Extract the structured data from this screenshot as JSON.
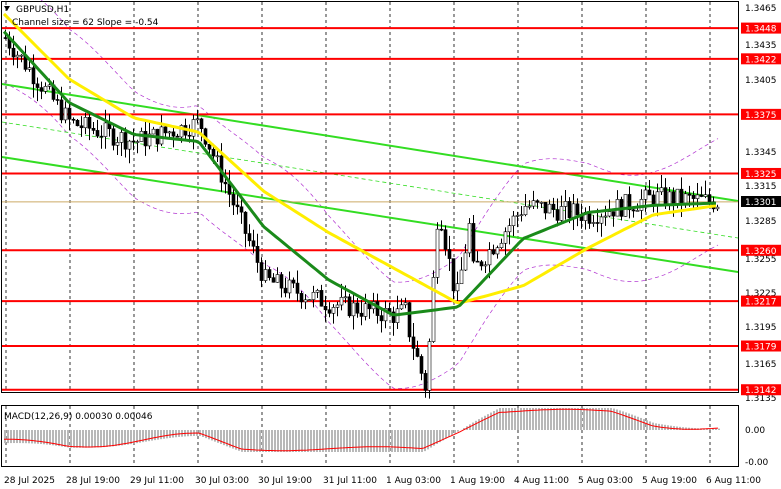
{
  "header": {
    "symbol": "GBPUSD,H1",
    "channel_info": "Channel size = 62 Slope = -0.54"
  },
  "macd": {
    "title": "MACD(12,26,9) 0.00030 0.00046",
    "scale_labels": [
      "0.00",
      "-0.00"
    ]
  },
  "price_axis": {
    "ticks": [
      "1.3465",
      "1.3435",
      "1.3405",
      "1.3345",
      "1.3315",
      "1.3285",
      "1.3255",
      "1.3225",
      "1.3195",
      "1.3165",
      "1.3135"
    ],
    "current_price": "1.3301"
  },
  "time_axis": {
    "labels": [
      "28 Jul 2025",
      "28 Jul 19:00",
      "29 Jul 11:00",
      "30 Jul 03:00",
      "30 Jul 19:00",
      "31 Jul 11:00",
      "1 Aug 03:00",
      "1 Aug 19:00",
      "4 Aug 11:00",
      "5 Aug 03:00",
      "5 Aug 19:00",
      "6 Aug 11:00"
    ]
  },
  "levels": [
    {
      "label": "1.3448",
      "value": 1.3448
    },
    {
      "label": "1.3422",
      "value": 1.3422
    },
    {
      "label": "1.3375",
      "value": 1.3375
    },
    {
      "label": "1.3325",
      "value": 1.3325
    },
    {
      "label": "1.3260",
      "value": 1.326
    },
    {
      "label": "1.3217",
      "value": 1.3217
    },
    {
      "label": "1.3179",
      "value": 1.3179
    },
    {
      "label": "1.3142",
      "value": 1.3142
    }
  ],
  "colors": {
    "level": "#ff0000",
    "channel": "#33dd22",
    "ma_fast": "#1a8a1a",
    "ma_slow": "#ffee00",
    "bollinger": "#b030d0",
    "macd_hist": "#b8b8b8",
    "macd_signal": "#ff0000",
    "candle": "#000000",
    "current_price_line": "#ccaa66"
  },
  "chart_data": {
    "type": "candlestick",
    "symbol": "GBPUSD",
    "timeframe": "H1",
    "ylim": [
      1.3135,
      1.3465
    ],
    "x": [
      "28 Jul 2025",
      "28 Jul 19:00",
      "29 Jul 11:00",
      "30 Jul 03:00",
      "30 Jul 19:00",
      "31 Jul 11:00",
      "1 Aug 03:00",
      "1 Aug 19:00",
      "4 Aug 11:00",
      "5 Aug 03:00",
      "5 Aug 19:00",
      "6 Aug 11:00"
    ],
    "close": [
      1.344,
      1.3368,
      1.3352,
      1.3368,
      1.3235,
      1.3215,
      1.3205,
      1.3228,
      1.3298,
      1.329,
      1.3305,
      1.3301
    ],
    "series": [
      {
        "name": "MA (green)",
        "values": [
          1.3445,
          1.3385,
          1.3358,
          1.3352,
          1.328,
          1.3235,
          1.3205,
          1.3212,
          1.327,
          1.3292,
          1.3298,
          1.33
        ]
      },
      {
        "name": "MA (yellow)",
        "values": [
          1.346,
          1.3405,
          1.3372,
          1.336,
          1.331,
          1.3275,
          1.3245,
          1.3215,
          1.323,
          1.3262,
          1.329,
          1.3298
        ]
      }
    ]
  }
}
